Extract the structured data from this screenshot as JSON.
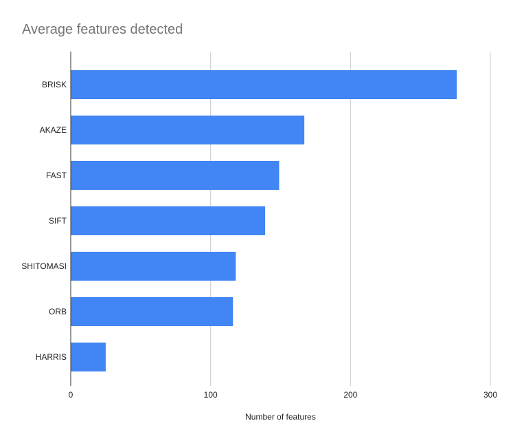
{
  "chart_data": {
    "type": "bar",
    "orientation": "horizontal",
    "title": "Average features detected",
    "xlabel": "Number of features",
    "ylabel": "",
    "categories": [
      "BRISK",
      "AKAZE",
      "FAST",
      "SIFT",
      "SHITOMASI",
      "ORB",
      "HARRIS"
    ],
    "values": [
      276,
      167,
      149,
      139,
      118,
      116,
      25
    ],
    "xlim": [
      0,
      300
    ],
    "xticks": [
      "0",
      "100",
      "200",
      "300"
    ],
    "grid": "vertical",
    "legend": "none",
    "colors": {
      "bar": "#4285f4",
      "grid": "#cccccc",
      "axis": "#333333",
      "title": "#757575"
    }
  }
}
